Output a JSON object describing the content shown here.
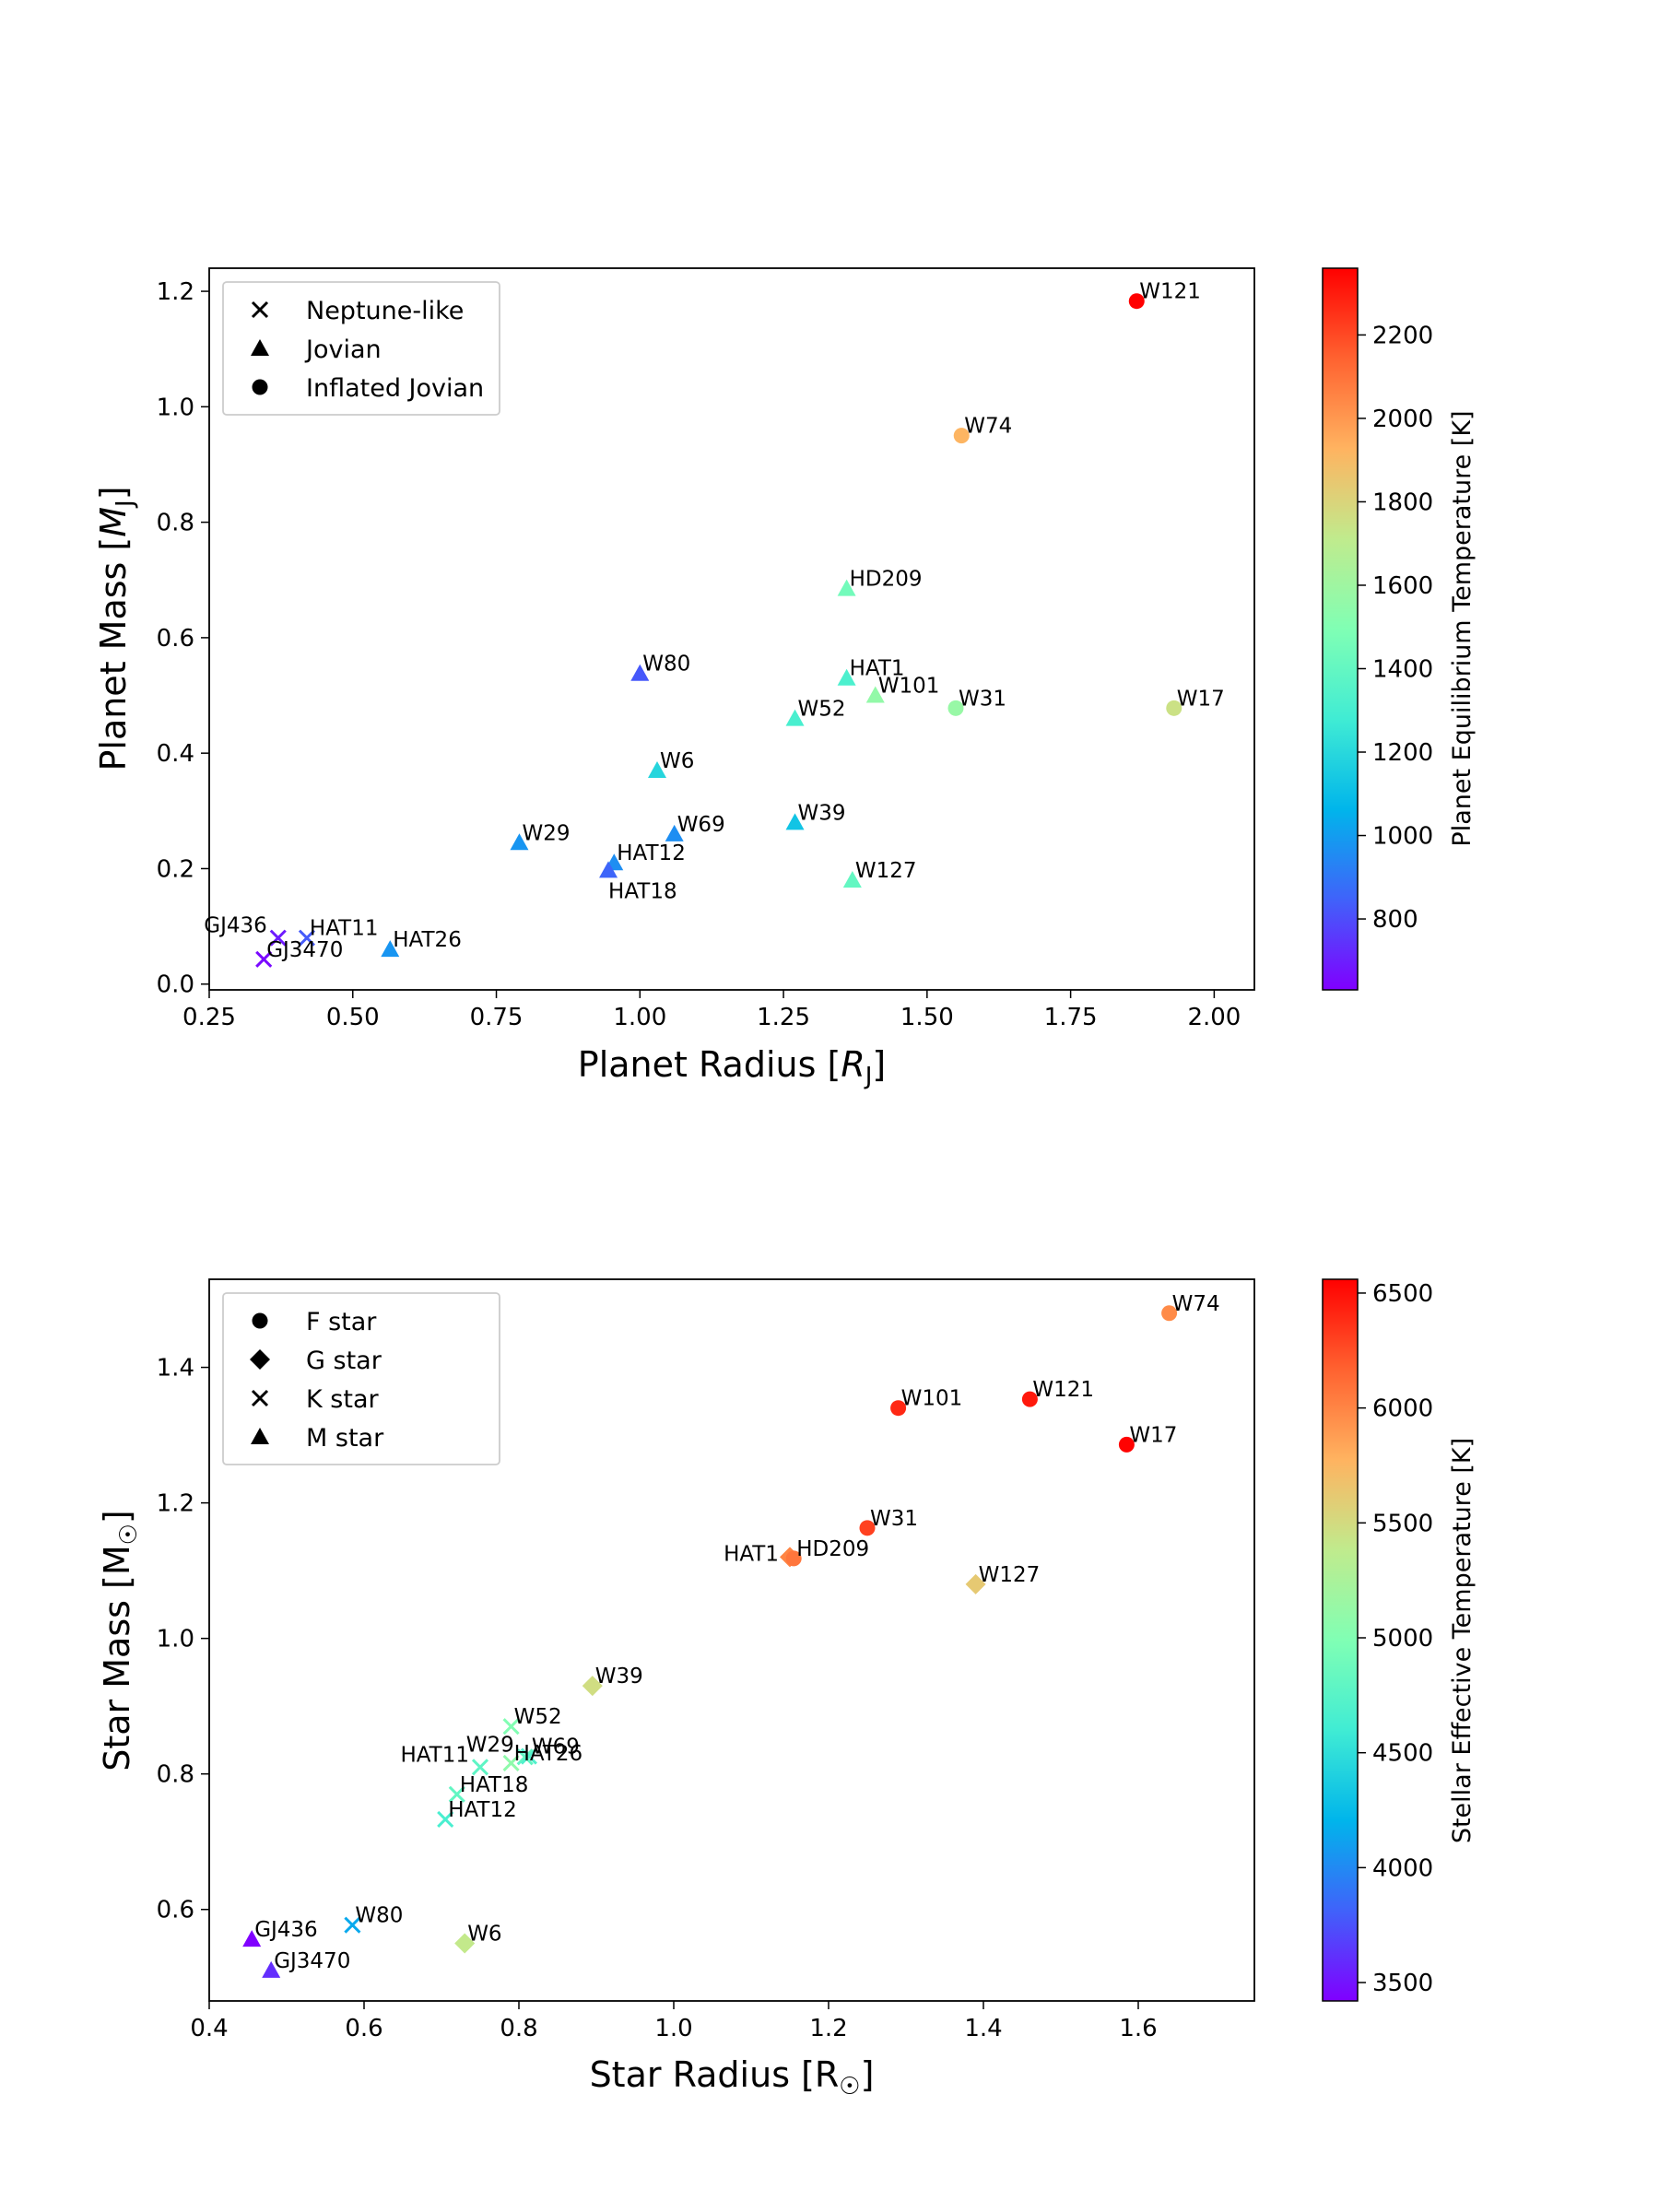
{
  "chart_data": [
    {
      "type": "scatter",
      "xlabel": "Planet Radius [R_J]",
      "ylabel": "Planet Mass [M_J]",
      "xlabel_main": "Planet Radius [",
      "xlabel_sym": "R",
      "xlabel_sub": "J",
      "xlabel_end": "]",
      "ylabel_main": "Planet Mass [",
      "ylabel_sym": "M",
      "ylabel_sub": "J",
      "ylabel_end": "]",
      "xlim": [
        0.25,
        2.07
      ],
      "ylim": [
        -0.01,
        1.24
      ],
      "xticks": [
        0.25,
        0.5,
        0.75,
        1.0,
        1.25,
        1.5,
        1.75,
        2.0
      ],
      "xtick_labels": [
        "0.25",
        "0.50",
        "0.75",
        "1.00",
        "1.25",
        "1.50",
        "1.75",
        "2.00"
      ],
      "yticks": [
        0.0,
        0.2,
        0.4,
        0.6,
        0.8,
        1.0,
        1.2
      ],
      "ytick_labels": [
        "0.0",
        "0.2",
        "0.4",
        "0.6",
        "0.8",
        "1.0",
        "1.2"
      ],
      "legend_position": "top-left",
      "legend": [
        {
          "marker": "x",
          "label": "Neptune-like"
        },
        {
          "marker": "triangle",
          "label": "Jovian"
        },
        {
          "marker": "circle",
          "label": "Inflated Jovian"
        }
      ],
      "colorbar": {
        "label": "Planet Equilibrium Temperature [K]",
        "range": [
          630,
          2360
        ],
        "ticks": [
          800,
          1000,
          1200,
          1400,
          1600,
          1800,
          2000,
          2200
        ],
        "tick_labels": [
          "800",
          "1000",
          "1200",
          "1400",
          "1600",
          "1800",
          "2000",
          "2200"
        ]
      },
      "points": [
        {
          "name": "W121",
          "x": 1.865,
          "y": 1.183,
          "temp": 2360,
          "marker": "circle",
          "label_pos": "right"
        },
        {
          "name": "W74",
          "x": 1.56,
          "y": 0.95,
          "temp": 1920,
          "marker": "circle",
          "label_pos": "right"
        },
        {
          "name": "HD209",
          "x": 1.36,
          "y": 0.685,
          "temp": 1450,
          "marker": "triangle",
          "label_pos": "right"
        },
        {
          "name": "W80",
          "x": 1.0,
          "y": 0.538,
          "temp": 825,
          "marker": "triangle",
          "label_pos": "right"
        },
        {
          "name": "HAT1",
          "x": 1.36,
          "y": 0.53,
          "temp": 1320,
          "marker": "triangle",
          "label_pos": "right"
        },
        {
          "name": "W101",
          "x": 1.41,
          "y": 0.5,
          "temp": 1560,
          "marker": "triangle",
          "label_pos": "right"
        },
        {
          "name": "W31",
          "x": 1.55,
          "y": 0.478,
          "temp": 1575,
          "marker": "circle",
          "label_pos": "right"
        },
        {
          "name": "W17",
          "x": 1.93,
          "y": 0.478,
          "temp": 1750,
          "marker": "circle",
          "label_pos": "right"
        },
        {
          "name": "W52",
          "x": 1.27,
          "y": 0.46,
          "temp": 1310,
          "marker": "triangle",
          "label_pos": "right"
        },
        {
          "name": "W6",
          "x": 1.03,
          "y": 0.37,
          "temp": 1190,
          "marker": "triangle",
          "label_pos": "right"
        },
        {
          "name": "W39",
          "x": 1.27,
          "y": 0.28,
          "temp": 1120,
          "marker": "triangle",
          "label_pos": "right"
        },
        {
          "name": "W69",
          "x": 1.06,
          "y": 0.26,
          "temp": 960,
          "marker": "triangle",
          "label_pos": "right"
        },
        {
          "name": "W29",
          "x": 0.79,
          "y": 0.245,
          "temp": 980,
          "marker": "triangle",
          "label_pos": "right"
        },
        {
          "name": "HAT12",
          "x": 0.955,
          "y": 0.21,
          "temp": 960,
          "marker": "triangle",
          "label_pos": "right"
        },
        {
          "name": "HAT18",
          "x": 0.945,
          "y": 0.197,
          "temp": 855,
          "marker": "triangle",
          "label_pos": "below"
        },
        {
          "name": "W127",
          "x": 1.37,
          "y": 0.18,
          "temp": 1400,
          "marker": "triangle",
          "label_pos": "right"
        },
        {
          "name": "GJ436",
          "x": 0.37,
          "y": 0.08,
          "temp": 690,
          "marker": "x",
          "label_pos": "above-left"
        },
        {
          "name": "HAT11",
          "x": 0.42,
          "y": 0.08,
          "temp": 830,
          "marker": "x",
          "label_pos": "right"
        },
        {
          "name": "HAT26",
          "x": 0.565,
          "y": 0.06,
          "temp": 980,
          "marker": "triangle",
          "label_pos": "right"
        },
        {
          "name": "GJ3470",
          "x": 0.345,
          "y": 0.043,
          "temp": 650,
          "marker": "x",
          "label_pos": "right"
        }
      ]
    },
    {
      "type": "scatter",
      "xlabel": "Star Radius [R☉]",
      "ylabel": "Star Mass [M☉]",
      "xlabel_main": "Star Radius [R",
      "xlabel_sym": "",
      "xlabel_sub": "☉",
      "xlabel_end": "]",
      "ylabel_main": "Star Mass [M",
      "ylabel_sym": "",
      "ylabel_sub": "☉",
      "ylabel_end": "]",
      "xlim": [
        0.4,
        1.75
      ],
      "ylim": [
        0.465,
        1.53
      ],
      "xticks": [
        0.4,
        0.6,
        0.8,
        1.0,
        1.2,
        1.4,
        1.6
      ],
      "xtick_labels": [
        "0.4",
        "0.6",
        "0.8",
        "1.0",
        "1.2",
        "1.4",
        "1.6"
      ],
      "yticks": [
        0.6,
        0.8,
        1.0,
        1.2,
        1.4
      ],
      "ytick_labels": [
        "0.6",
        "0.8",
        "1.0",
        "1.2",
        "1.4"
      ],
      "legend_position": "top-left",
      "legend": [
        {
          "marker": "circle",
          "label": "F star"
        },
        {
          "marker": "diamond",
          "label": "G star"
        },
        {
          "marker": "x",
          "label": "K star"
        },
        {
          "marker": "triangle",
          "label": "M star"
        }
      ],
      "colorbar": {
        "label": "Stellar Effective Temperature [K]",
        "range": [
          3420,
          6560
        ],
        "ticks": [
          3500,
          4000,
          4500,
          5000,
          5500,
          6000,
          6500
        ],
        "tick_labels": [
          "3500",
          "4000",
          "4500",
          "5000",
          "5500",
          "6000",
          "6500"
        ]
      },
      "points": [
        {
          "name": "W74",
          "x": 1.64,
          "y": 1.48,
          "temp": 5970,
          "marker": "circle",
          "label_pos": "right"
        },
        {
          "name": "W121",
          "x": 1.46,
          "y": 1.353,
          "temp": 6460,
          "marker": "circle",
          "label_pos": "right"
        },
        {
          "name": "W101",
          "x": 1.29,
          "y": 1.34,
          "temp": 6400,
          "marker": "circle",
          "label_pos": "right"
        },
        {
          "name": "W17",
          "x": 1.585,
          "y": 1.286,
          "temp": 6550,
          "marker": "circle",
          "label_pos": "right"
        },
        {
          "name": "W31",
          "x": 1.25,
          "y": 1.163,
          "temp": 6300,
          "marker": "circle",
          "label_pos": "right"
        },
        {
          "name": "HAT1",
          "x": 1.15,
          "y": 1.12,
          "temp": 6000,
          "marker": "diamond",
          "label_pos": "left"
        },
        {
          "name": "HD209",
          "x": 1.155,
          "y": 1.118,
          "temp": 6070,
          "marker": "circle",
          "label_pos": "right"
        },
        {
          "name": "W127",
          "x": 1.39,
          "y": 1.08,
          "temp": 5620,
          "marker": "diamond",
          "label_pos": "right"
        },
        {
          "name": "W39",
          "x": 0.895,
          "y": 0.93,
          "temp": 5480,
          "marker": "diamond",
          "label_pos": "right"
        },
        {
          "name": "W52",
          "x": 0.79,
          "y": 0.87,
          "temp": 5000,
          "marker": "x",
          "label_pos": "right"
        },
        {
          "name": "W29",
          "x": 0.808,
          "y": 0.825,
          "temp": 4800,
          "marker": "x",
          "label_pos": "above-left"
        },
        {
          "name": "W69",
          "x": 0.813,
          "y": 0.826,
          "temp": 4700,
          "marker": "x",
          "label_pos": "right"
        },
        {
          "name": "HAT11",
          "x": 0.75,
          "y": 0.81,
          "temp": 4780,
          "marker": "x",
          "label_pos": "above-left"
        },
        {
          "name": "HAT26",
          "x": 0.79,
          "y": 0.816,
          "temp": 5080,
          "marker": "x",
          "label_pos": "right"
        },
        {
          "name": "HAT18",
          "x": 0.72,
          "y": 0.77,
          "temp": 4800,
          "marker": "x",
          "label_pos": "right"
        },
        {
          "name": "HAT12",
          "x": 0.705,
          "y": 0.733,
          "temp": 4650,
          "marker": "x",
          "label_pos": "right"
        },
        {
          "name": "W80",
          "x": 0.585,
          "y": 0.577,
          "temp": 4150,
          "marker": "x",
          "label_pos": "right"
        },
        {
          "name": "GJ436",
          "x": 0.455,
          "y": 0.556,
          "temp": 3420,
          "marker": "triangle",
          "label_pos": "right"
        },
        {
          "name": "W6",
          "x": 0.73,
          "y": 0.55,
          "temp": 5400,
          "marker": "diamond",
          "label_pos": "right"
        },
        {
          "name": "GJ3470",
          "x": 0.48,
          "y": 0.51,
          "temp": 3600,
          "marker": "triangle",
          "label_pos": "right"
        }
      ]
    }
  ]
}
